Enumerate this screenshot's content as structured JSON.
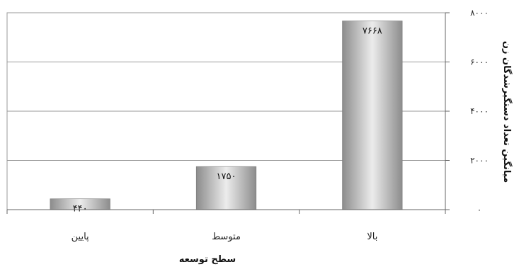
{
  "chart_data": {
    "type": "bar",
    "categories": [
      "پایین",
      "متوسط",
      "بالا"
    ],
    "values": [
      440,
      1750,
      7668
    ],
    "data_labels": [
      "۴۴۰",
      "۱۷۵۰",
      "۷۶۶۸"
    ],
    "xlabel": "سطح توسعه",
    "ylabel": "میانگین  تعداد دستگیرشدگان زن",
    "ylim": [
      0,
      8000
    ],
    "yticks": [
      0,
      2000,
      4000,
      6000,
      8000
    ],
    "ytick_labels": [
      "۰",
      "۲۰۰۰",
      "۴۰۰۰",
      "۶۰۰۰",
      "۸۰۰۰"
    ],
    "grid": true,
    "y_axis_side": "right",
    "bar_color": "#a8a8a8"
  }
}
